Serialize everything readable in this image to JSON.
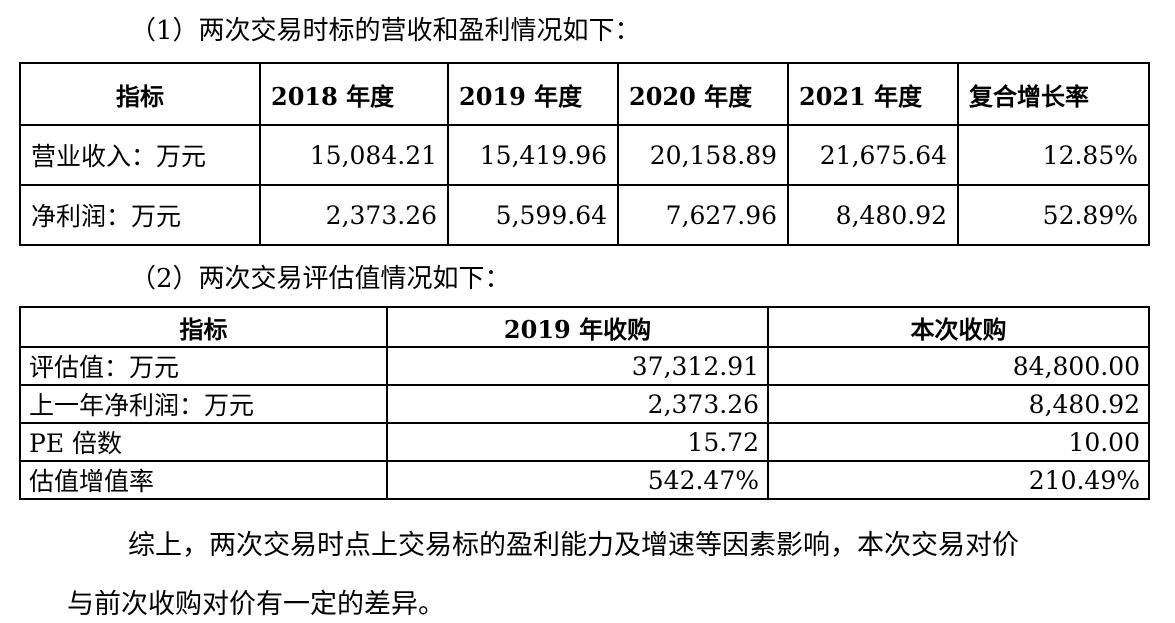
{
  "section1": {
    "heading": "（1）两次交易时标的营收和盈利情况如下：",
    "table": {
      "headers": [
        "指标",
        "2018 年度",
        "2019 年度",
        "2020 年度",
        "2021 年度",
        "复合增长率"
      ],
      "rows": [
        [
          "营业收入：万元",
          "15,084.21",
          "15,419.96",
          "20,158.89",
          "21,675.64",
          "12.85%"
        ],
        [
          "净利润：万元",
          "2,373.26",
          "5,599.64",
          "7,627.96",
          "8,480.92",
          "52.89%"
        ]
      ]
    }
  },
  "section2": {
    "heading": "（2）两次交易评估值情况如下：",
    "table": {
      "headers": [
        "指标",
        "2019 年收购",
        "本次收购"
      ],
      "rows": [
        [
          "评估值：万元",
          "37,312.91",
          "84,800.00"
        ],
        [
          "上一年净利润：万元",
          "2,373.26",
          "8,480.92"
        ],
        [
          "PE 倍数",
          "15.72",
          "10.00"
        ],
        [
          "估值增值率",
          "542.47%",
          "210.49%"
        ]
      ]
    }
  },
  "conclusion": {
    "line1": "综上，两次交易时点上交易标的盈利能力及增速等因素影响，本次交易对价",
    "line2": "与前次收购对价有一定的差异。"
  }
}
